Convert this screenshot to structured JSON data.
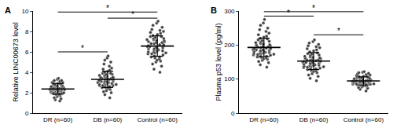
{
  "chart_data": [
    {
      "type": "scatter",
      "title": "A",
      "y_label": "Relative LINC00673 level",
      "categories": [
        "DR (n=60)",
        "DB (n=60)",
        "Control (n=60)"
      ],
      "values": [
        [
          1.2,
          1.3,
          1.4,
          1.5,
          1.6,
          1.7,
          1.7,
          1.8,
          1.8,
          1.9,
          1.9,
          1.9,
          2.0,
          2.0,
          2.0,
          2.0,
          2.1,
          2.1,
          2.1,
          2.1,
          2.2,
          2.2,
          2.2,
          2.2,
          2.2,
          2.3,
          2.3,
          2.3,
          2.3,
          2.3,
          2.3,
          2.4,
          2.4,
          2.4,
          2.4,
          2.4,
          2.5,
          2.5,
          2.5,
          2.5,
          2.6,
          2.6,
          2.6,
          2.6,
          2.7,
          2.7,
          2.7,
          2.8,
          2.8,
          2.8,
          2.9,
          2.9,
          3.0,
          3.0,
          3.1,
          3.1,
          3.2,
          3.2,
          3.3,
          3.4
        ],
        [
          1.5,
          1.8,
          2.0,
          2.1,
          2.2,
          2.3,
          2.4,
          2.4,
          2.5,
          2.5,
          2.6,
          2.6,
          2.7,
          2.7,
          2.7,
          2.8,
          2.8,
          2.8,
          2.9,
          2.9,
          2.9,
          3.0,
          3.0,
          3.0,
          3.0,
          3.1,
          3.1,
          3.1,
          3.1,
          3.2,
          3.2,
          3.2,
          3.3,
          3.3,
          3.3,
          3.4,
          3.4,
          3.4,
          3.5,
          3.5,
          3.5,
          3.6,
          3.6,
          3.7,
          3.7,
          3.8,
          3.8,
          3.9,
          3.9,
          4.0,
          4.1,
          4.2,
          4.3,
          4.4,
          4.6,
          4.8,
          5.0,
          5.2,
          5.4,
          5.6
        ],
        [
          4.0,
          4.3,
          4.6,
          4.8,
          5.0,
          5.1,
          5.2,
          5.3,
          5.4,
          5.5,
          5.5,
          5.6,
          5.7,
          5.8,
          5.8,
          5.9,
          5.9,
          6.0,
          6.0,
          6.1,
          6.1,
          6.2,
          6.2,
          6.3,
          6.3,
          6.3,
          6.4,
          6.4,
          6.5,
          6.5,
          6.6,
          6.6,
          6.7,
          6.7,
          6.8,
          6.8,
          6.9,
          6.9,
          7.0,
          7.0,
          7.1,
          7.1,
          7.2,
          7.2,
          7.3,
          7.3,
          7.4,
          7.5,
          7.5,
          7.6,
          7.7,
          7.8,
          7.9,
          8.0,
          8.1,
          8.2,
          8.4,
          8.6,
          8.8,
          9.0
        ]
      ],
      "mean": [
        2.37,
        3.31,
        6.57
      ],
      "sd": [
        0.52,
        0.8,
        1.0
      ],
      "ylim": [
        0,
        10
      ],
      "yticks": [
        0,
        2,
        4,
        6,
        8,
        10
      ],
      "color": "#404040",
      "comparisons": [
        {
          "from": "DR (n=60)",
          "to": "DB (n=60)",
          "y": 6.0,
          "label": "*"
        },
        {
          "from": "DB (n=60)",
          "to": "Control (n=60)",
          "y": 9.3,
          "label": "*"
        },
        {
          "from": "DR (n=60)",
          "to": "Control (n=60)",
          "y": 9.9,
          "label": "*"
        }
      ]
    },
    {
      "type": "scatter",
      "title": "B",
      "y_label": "Plasma p53 level (pg/ml)",
      "categories": [
        "DR (n=60)",
        "DB (n=60)",
        "Control (n=60)"
      ],
      "values": [
        [
          135,
          142,
          148,
          152,
          155,
          158,
          160,
          162,
          164,
          165,
          167,
          168,
          170,
          171,
          172,
          173,
          174,
          175,
          176,
          177,
          178,
          179,
          180,
          181,
          182,
          183,
          184,
          185,
          186,
          187,
          188,
          189,
          190,
          191,
          192,
          194,
          195,
          196,
          198,
          200,
          201,
          203,
          205,
          207,
          209,
          211,
          213,
          215,
          218,
          220,
          223,
          226,
          230,
          235,
          240,
          245,
          250,
          258,
          265,
          275
        ],
        [
          95,
          102,
          108,
          112,
          116,
          119,
          122,
          124,
          126,
          128,
          130,
          131,
          132,
          134,
          135,
          136,
          137,
          138,
          139,
          140,
          141,
          142,
          143,
          144,
          145,
          146,
          147,
          148,
          149,
          150,
          151,
          152,
          153,
          154,
          155,
          156,
          157,
          158,
          160,
          161,
          162,
          164,
          165,
          167,
          169,
          171,
          173,
          175,
          177,
          180,
          183,
          186,
          189,
          192,
          195,
          198,
          202,
          206,
          210,
          215
        ],
        [
          65,
          70,
          73,
          75,
          77,
          79,
          80,
          81,
          82,
          83,
          84,
          84,
          85,
          85,
          86,
          86,
          87,
          87,
          88,
          88,
          89,
          89,
          90,
          90,
          91,
          91,
          92,
          92,
          93,
          93,
          94,
          94,
          95,
          95,
          96,
          96,
          97,
          97,
          98,
          98,
          99,
          100,
          100,
          101,
          102,
          103,
          104,
          105,
          106,
          107,
          108,
          109,
          110,
          112,
          113,
          115,
          117,
          119,
          120,
          122
        ]
      ],
      "mean": [
        193,
        153,
        94.5
      ],
      "sd": [
        27,
        25,
        12
      ],
      "ylim": [
        0,
        300
      ],
      "yticks": [
        0,
        100,
        200,
        300
      ],
      "color": "#404040",
      "comparisons": [
        {
          "from": "DR (n=60)",
          "to": "DB (n=60)",
          "y": 285,
          "label": "*"
        },
        {
          "from": "DB (n=60)",
          "to": "Control (n=60)",
          "y": 230,
          "label": "*"
        },
        {
          "from": "DR (n=60)",
          "to": "Control (n=60)",
          "y": 298,
          "label": "*"
        }
      ]
    }
  ]
}
